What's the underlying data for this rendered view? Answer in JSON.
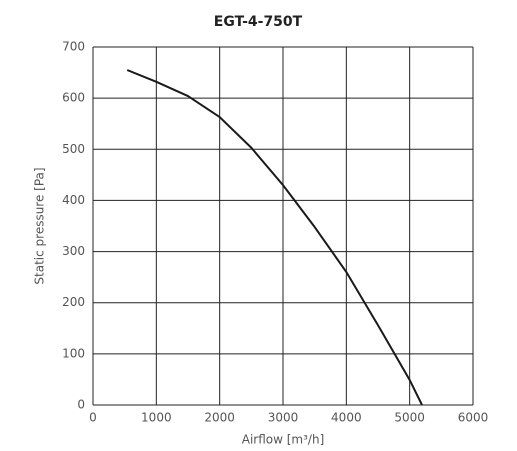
{
  "chart_data": {
    "type": "line",
    "title": "EGT-4-750T",
    "x_label": "Airflow [m³/h]",
    "y_label": "Static pressure [Pa]",
    "x": [
      540,
      1000,
      1500,
      2000,
      2500,
      3000,
      3500,
      4000,
      4500,
      5000,
      5195
    ],
    "values": [
      655,
      632,
      604,
      563,
      503,
      430,
      348,
      260,
      156,
      49,
      0
    ],
    "color": "#1a1a1a",
    "xlim": [
      0,
      6000
    ],
    "xticks": [
      0,
      1000,
      2000,
      3000,
      4000,
      5000,
      6000
    ],
    "ylim": [
      0,
      700
    ],
    "yticks": [
      0,
      100,
      200,
      300,
      400,
      500,
      600,
      700
    ],
    "grid": true
  }
}
